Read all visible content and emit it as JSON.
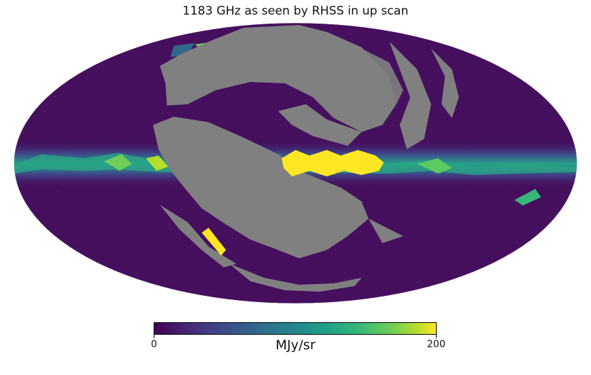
{
  "title": "1183 GHz as seen by RHSS in up scan",
  "projection": "mollweide",
  "colormap": "viridis",
  "mask_color": "#808080",
  "colorbar": {
    "min_label": "0",
    "max_label": "200",
    "unit": "MJy/sr",
    "range": [
      0,
      200
    ]
  }
}
